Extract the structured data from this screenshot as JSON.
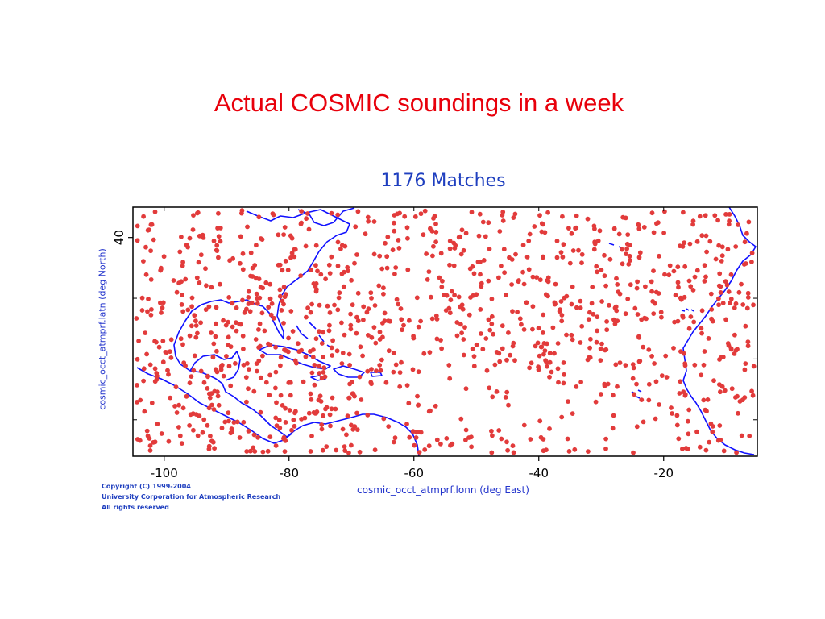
{
  "slide_title": "Actual COSMIC soundings in a week",
  "plot_title": "1176 Matches",
  "x_axis": {
    "label": "cosmic_occt_atmprf.lonn (deg East)",
    "ticks": [
      -100,
      -80,
      -60,
      -40,
      -20
    ],
    "range": [
      -105,
      -5
    ]
  },
  "y_axis": {
    "label": "cosmic_occt_atmprf.latn (deg North)",
    "ticks": [
      40
    ],
    "range": [
      4,
      45
    ]
  },
  "copyright": [
    "Copyright (C) 1999-2004",
    "University Corporation for Atmospheric Research",
    "All rights reserved"
  ],
  "colors": {
    "slide_title": "#e8000b",
    "plot_title": "#1f3fbf",
    "points": "#e23b3b",
    "coastline": "#1010ff"
  },
  "points_count": 1176
}
